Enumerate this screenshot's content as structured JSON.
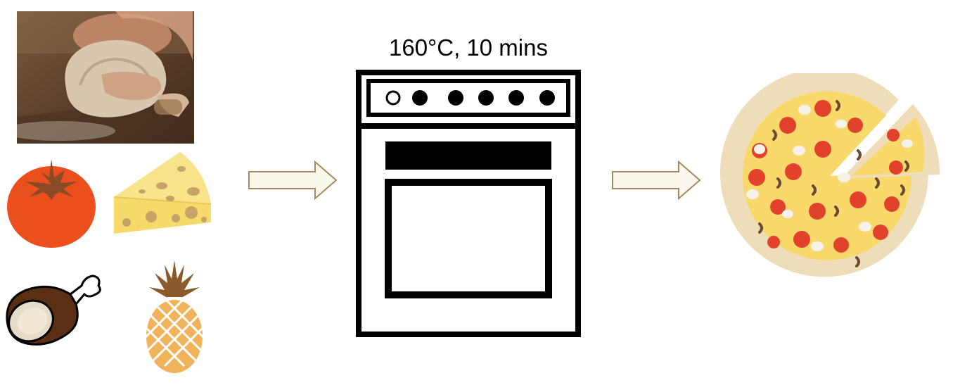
{
  "oven": {
    "caption": "160°C, 10 mins",
    "knob_count": 6
  },
  "colors": {
    "arrow_fill": "#fbf8ee",
    "arrow_stroke": "#a8895e",
    "tomato": "#ec4f1e",
    "cheese": "#f6db6a",
    "pizza_crust": "#efdcb8",
    "pizza_cheese": "#f9d96b",
    "pepperoni": "#e2422c"
  },
  "ingredients": [
    {
      "icon": "dough-kneading-photo"
    },
    {
      "icon": "tomato-icon"
    },
    {
      "icon": "cheese-icon"
    },
    {
      "icon": "ham-icon"
    },
    {
      "icon": "pineapple-icon"
    }
  ],
  "result": {
    "icon": "pizza-icon"
  }
}
